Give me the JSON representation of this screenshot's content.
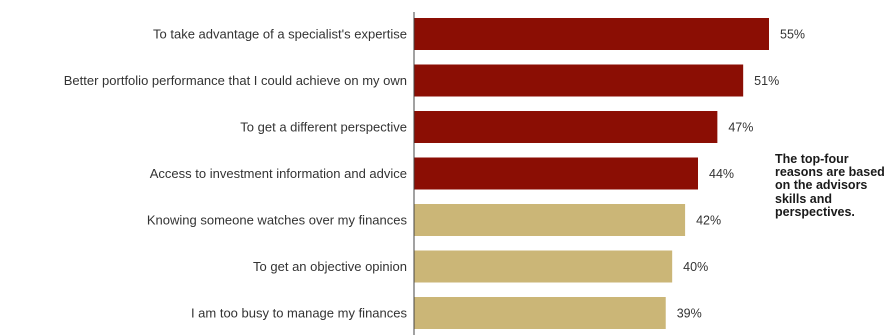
{
  "chart_data": {
    "type": "bar",
    "orientation": "horizontal",
    "categories": [
      "To take advantage of a specialist's expertise",
      "Better portfolio performance that I could achieve on my own",
      "To get a different perspective",
      "Access to investment information and advice",
      "Knowing someone watches over my finances",
      "To get an objective opinion",
      "I am too busy to manage my finances"
    ],
    "values": [
      55,
      51,
      47,
      44,
      42,
      40,
      39
    ],
    "value_labels": [
      "55%",
      "51%",
      "47%",
      "44%",
      "42%",
      "40%",
      "39%"
    ],
    "bar_colors": [
      "#8b0e04",
      "#8b0e04",
      "#8b0e04",
      "#8b0e04",
      "#cbb677",
      "#cbb677",
      "#cbb677"
    ],
    "xlim": [
      0,
      55
    ],
    "title": "",
    "xlabel": "",
    "ylabel": "",
    "grid": false,
    "annotation": "The top-four reasons are based on the advisors skills and perspectives."
  }
}
